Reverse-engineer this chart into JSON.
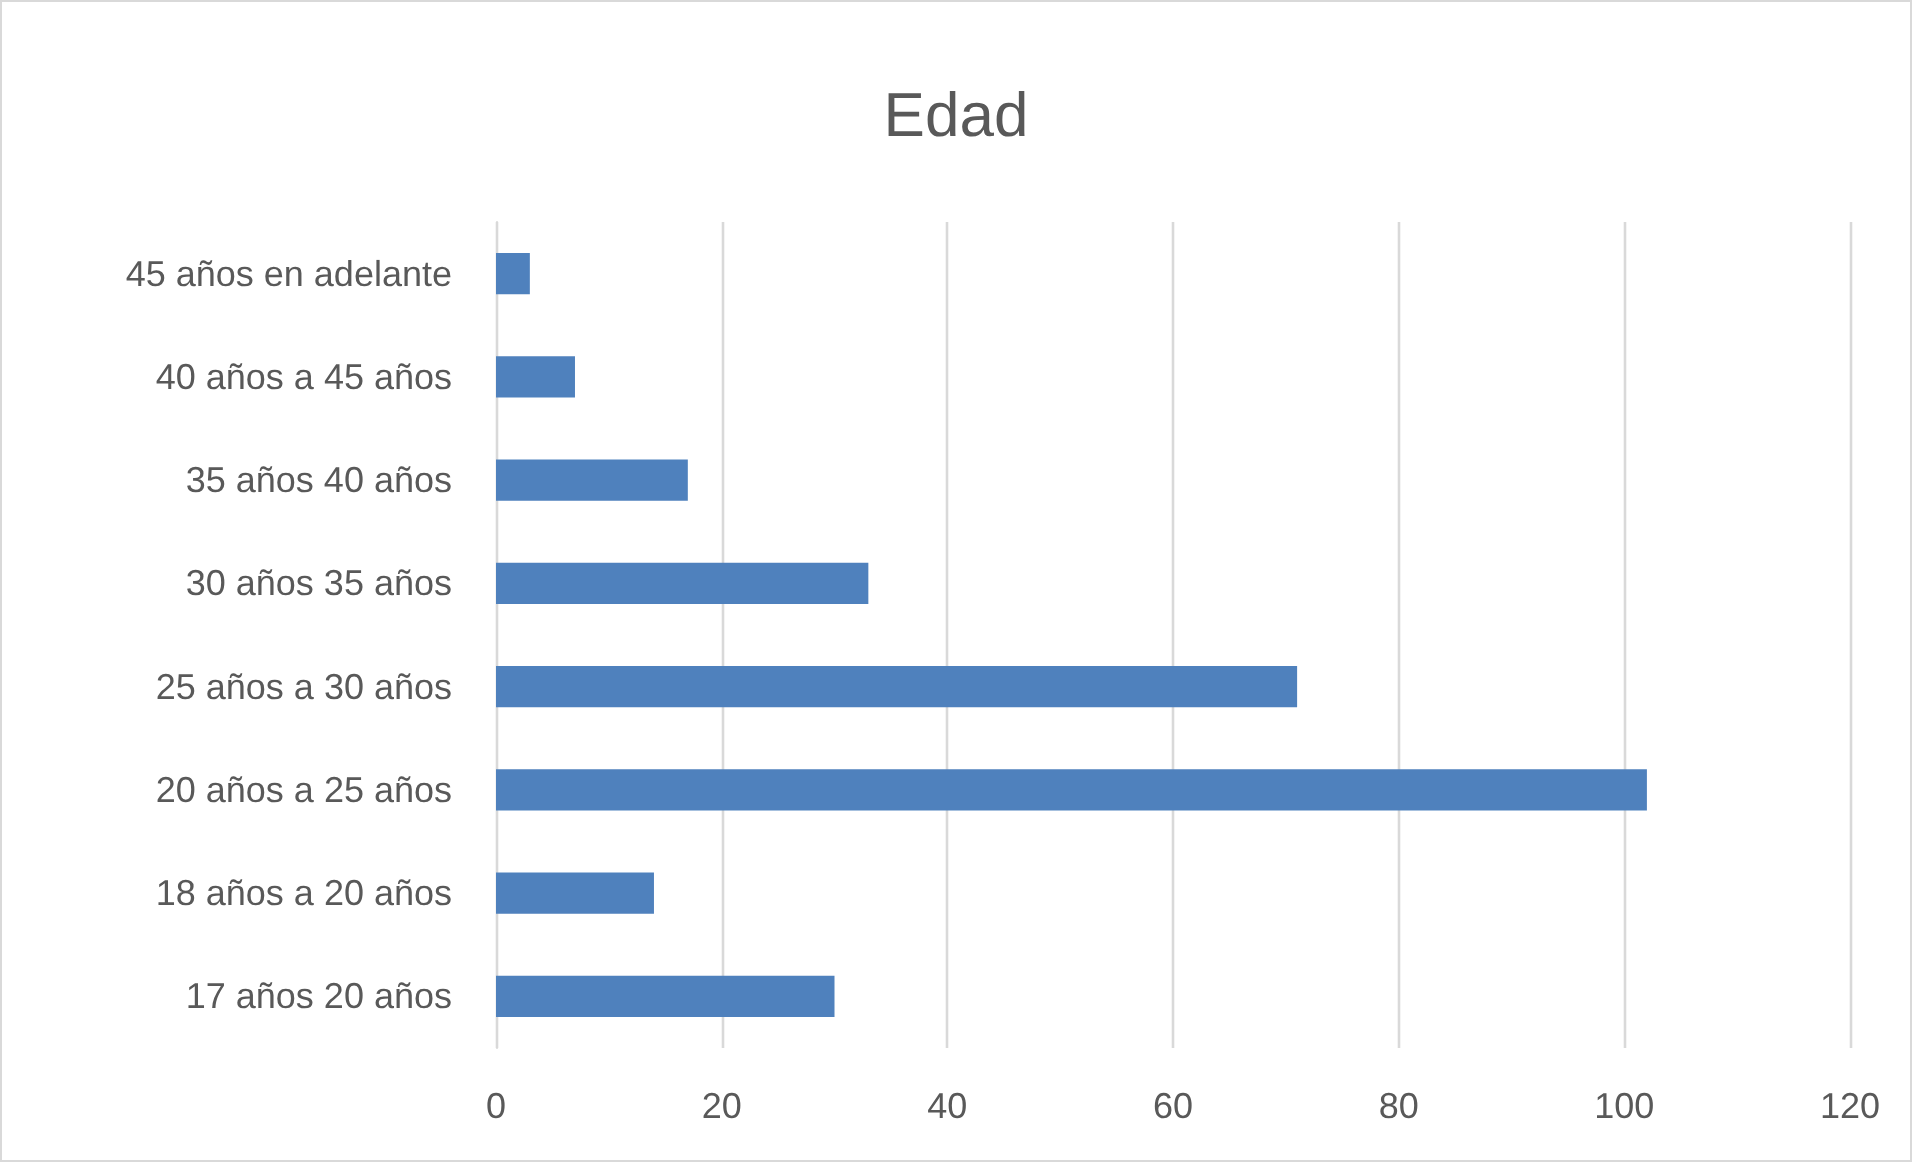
{
  "chart_data": {
    "type": "bar",
    "orientation": "horizontal",
    "title": "Edad",
    "categories": [
      "45 años en adelante",
      "40 años a 45 años",
      "35 años 40 años",
      "30 años 35 años",
      "25 años a 30 años",
      "20 años a 25 años",
      "18 años a 20 años",
      "17 años 20 años"
    ],
    "values": [
      3,
      7,
      17,
      33,
      71,
      102,
      14,
      30
    ],
    "color": "#4f81bd",
    "xlim": [
      0,
      120
    ],
    "xticks": [
      0,
      20,
      40,
      60,
      80,
      100,
      120
    ],
    "grid": "x"
  }
}
